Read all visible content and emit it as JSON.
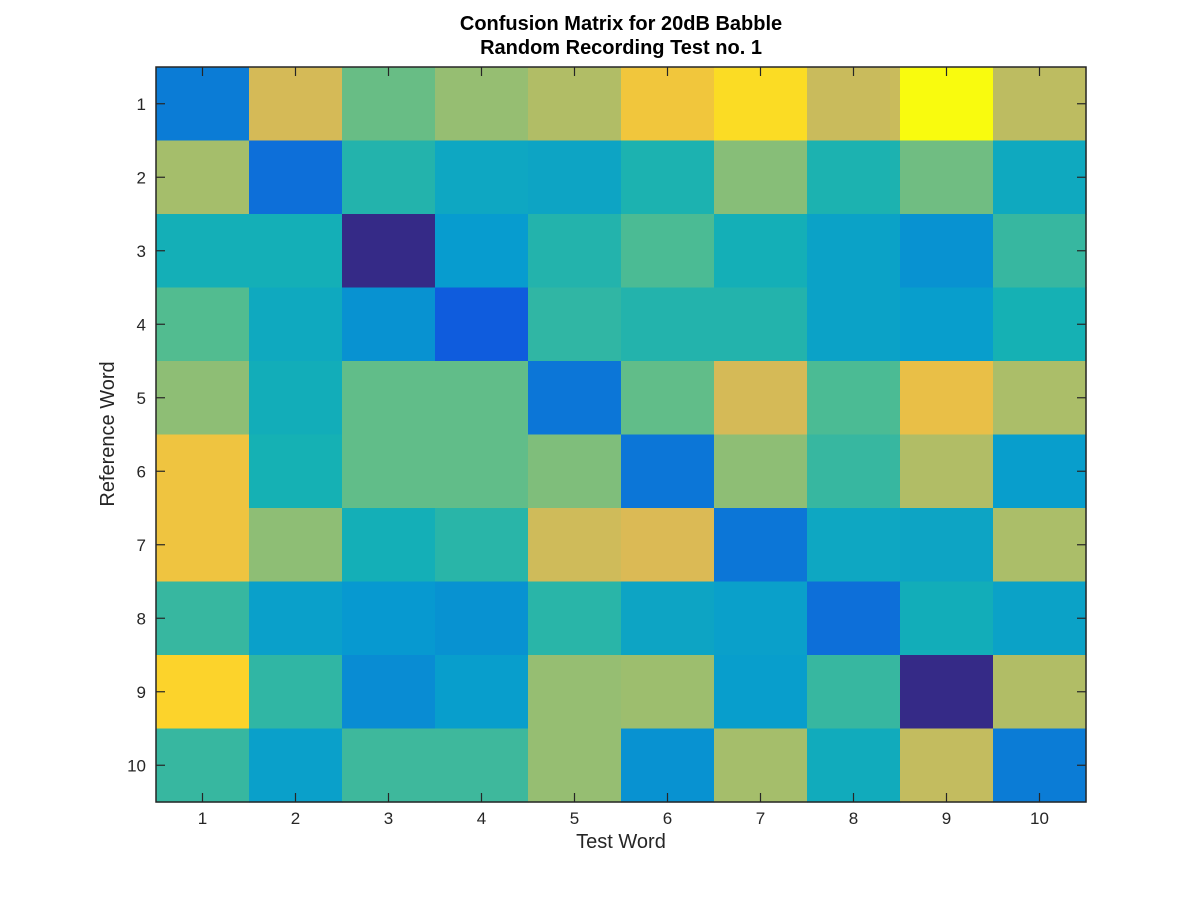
{
  "chart_data": {
    "type": "heatmap",
    "title": [
      "Confusion Matrix for 20dB Babble",
      "Random Recording Test no. 1"
    ],
    "xlabel": "Test Word",
    "ylabel": "Reference Word",
    "x_ticks": [
      "1",
      "2",
      "3",
      "4",
      "5",
      "6",
      "7",
      "8",
      "9",
      "10"
    ],
    "y_ticks": [
      "1",
      "2",
      "3",
      "4",
      "5",
      "6",
      "7",
      "8",
      "9",
      "10"
    ],
    "colormap": "parula",
    "colorbar": false,
    "grid": false,
    "values": [
      [
        0.3,
        0.78,
        0.62,
        0.68,
        0.72,
        0.86,
        0.93,
        0.76,
        1.0,
        0.74
      ],
      [
        0.7,
        0.26,
        0.52,
        0.45,
        0.44,
        0.51,
        0.66,
        0.51,
        0.63,
        0.46
      ],
      [
        0.49,
        0.49,
        0.0,
        0.4,
        0.52,
        0.58,
        0.49,
        0.43,
        0.37,
        0.55
      ],
      [
        0.59,
        0.46,
        0.37,
        0.2,
        0.54,
        0.52,
        0.52,
        0.43,
        0.41,
        0.5
      ],
      [
        0.67,
        0.48,
        0.61,
        0.61,
        0.28,
        0.61,
        0.78,
        0.58,
        0.83,
        0.71
      ],
      [
        0.85,
        0.5,
        0.61,
        0.61,
        0.65,
        0.28,
        0.67,
        0.55,
        0.72,
        0.41
      ],
      [
        0.85,
        0.67,
        0.49,
        0.53,
        0.77,
        0.79,
        0.28,
        0.45,
        0.44,
        0.71
      ],
      [
        0.55,
        0.42,
        0.39,
        0.37,
        0.53,
        0.44,
        0.42,
        0.26,
        0.48,
        0.43
      ],
      [
        0.91,
        0.54,
        0.35,
        0.41,
        0.68,
        0.69,
        0.41,
        0.55,
        0.0,
        0.72
      ],
      [
        0.55,
        0.42,
        0.56,
        0.56,
        0.68,
        0.37,
        0.7,
        0.47,
        0.75,
        0.3
      ]
    ]
  }
}
